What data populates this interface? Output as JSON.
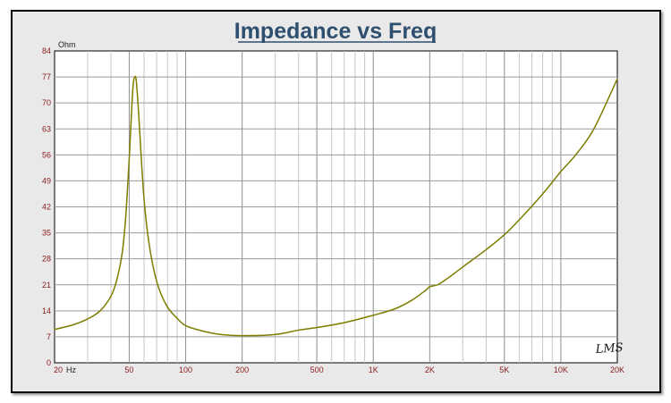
{
  "chart_data": {
    "type": "line",
    "title": "Impedance vs Freq",
    "ylabel": "Ohm",
    "xlabel": "",
    "x_scale": "log",
    "xlim": [
      20,
      20000
    ],
    "ylim": [
      0,
      84
    ],
    "grid": true,
    "y_ticks": [
      "0",
      "7",
      "14",
      "21",
      "28",
      "35",
      "42",
      "49",
      "56",
      "63",
      "70",
      "77",
      "84"
    ],
    "x_ticks": [
      {
        "value": 20,
        "label": "20"
      },
      {
        "value": 50,
        "label": "50"
      },
      {
        "value": 100,
        "label": "100"
      },
      {
        "value": 200,
        "label": "200"
      },
      {
        "value": 500,
        "label": "500"
      },
      {
        "value": 1000,
        "label": "1K"
      },
      {
        "value": 2000,
        "label": "2K"
      },
      {
        "value": 5000,
        "label": "5K"
      },
      {
        "value": 10000,
        "label": "10K"
      },
      {
        "value": 20000,
        "label": "20K"
      }
    ],
    "x_unit": "Hz",
    "series": [
      {
        "color": "#7d7d00",
        "points": [
          [
            20,
            9.0
          ],
          [
            25,
            10.2
          ],
          [
            30,
            11.8
          ],
          [
            35,
            14.0
          ],
          [
            40,
            18.0
          ],
          [
            43,
            22.5
          ],
          [
            46,
            30.0
          ],
          [
            48,
            40.0
          ],
          [
            50,
            55.0
          ],
          [
            51.5,
            68.0
          ],
          [
            52.5,
            75.0
          ],
          [
            53.5,
            77.0
          ],
          [
            54.5,
            76.0
          ],
          [
            56,
            68.0
          ],
          [
            58,
            55.0
          ],
          [
            60,
            44.0
          ],
          [
            63,
            34.0
          ],
          [
            67,
            26.0
          ],
          [
            72,
            20.0
          ],
          [
            80,
            15.0
          ],
          [
            90,
            12.0
          ],
          [
            100,
            10.0
          ],
          [
            120,
            8.7
          ],
          [
            150,
            7.7
          ],
          [
            200,
            7.3
          ],
          [
            300,
            7.6
          ],
          [
            400,
            8.8
          ],
          [
            500,
            9.5
          ],
          [
            700,
            10.8
          ],
          [
            1000,
            12.8
          ],
          [
            1300,
            14.5
          ],
          [
            1600,
            16.8
          ],
          [
            1900,
            19.5
          ],
          [
            2000,
            20.5
          ],
          [
            2200,
            21.0
          ],
          [
            2500,
            22.8
          ],
          [
            3000,
            25.8
          ],
          [
            4000,
            30.5
          ],
          [
            5000,
            34.5
          ],
          [
            6000,
            38.5
          ],
          [
            8000,
            45.5
          ],
          [
            10000,
            51.5
          ],
          [
            12000,
            56.0
          ],
          [
            15000,
            63.0
          ],
          [
            20000,
            76.5
          ]
        ]
      }
    ]
  },
  "logo_text": "LMS"
}
